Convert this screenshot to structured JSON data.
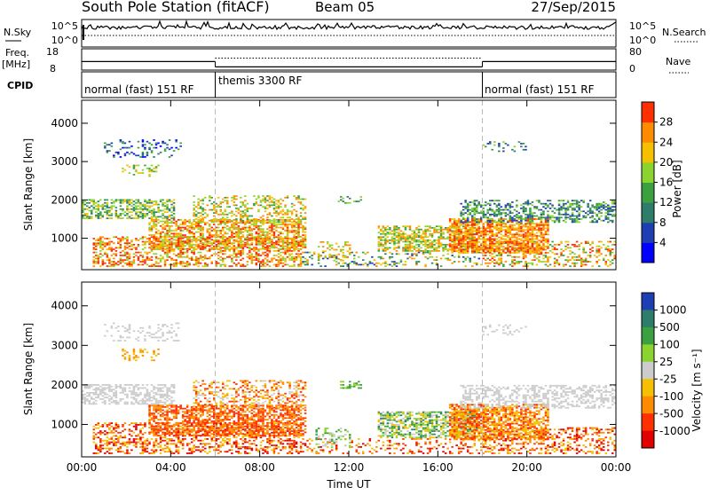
{
  "chart_data": [
    {
      "type": "table",
      "title": "South Pole Station (fitACF)",
      "subtitle": "Beam 05",
      "date": "27/Sep/2015"
    },
    {
      "type": "line",
      "panel": "noise",
      "label_left": "N.Sky",
      "label_right": "N.Search",
      "left_ticks": [
        "10^5",
        "10^0"
      ],
      "right_ticks": [
        "10^5",
        "10^0"
      ]
    },
    {
      "type": "line",
      "panel": "frequency",
      "label_left": "Freq.",
      "label_left_unit": "[MHz]",
      "label_right": "Nave",
      "left_ticks": [
        18,
        8
      ],
      "right_ticks": [
        80,
        0
      ],
      "segments": [
        {
          "start_hour": 0,
          "end_hour": 6,
          "freq": 12.0,
          "nave": 80
        },
        {
          "start_hour": 6,
          "end_hour": 18,
          "freq": 9.5,
          "nave": 45
        },
        {
          "start_hour": 18,
          "end_hour": 24,
          "freq": 12.0,
          "nave": 80
        }
      ]
    },
    {
      "type": "table",
      "panel": "cpid",
      "label": "CPID",
      "segments": [
        {
          "start_hour": 0,
          "end_hour": 6,
          "name": "normal (fast) 151 RF"
        },
        {
          "start_hour": 6,
          "end_hour": 18,
          "name": "themis 3300 RF"
        },
        {
          "start_hour": 18,
          "end_hour": 24,
          "name": "normal (fast) 151 RF"
        }
      ]
    },
    {
      "type": "heatmap",
      "panel": "power",
      "ylabel": "Slant Range [km]",
      "ylim": [
        180,
        4600
      ],
      "yticks": [
        1000,
        2000,
        3000,
        4000
      ],
      "colorbar_label": "Power [dB]",
      "colorbar_ticks": [
        28,
        24,
        20,
        16,
        12,
        8,
        4
      ],
      "colorbar_range": [
        0,
        32
      ],
      "colors": [
        "#0000ff",
        "#1e3fb4",
        "#2e7d6a",
        "#3aa040",
        "#8bd430",
        "#f5c000",
        "#ff8c00",
        "#ff3000"
      ]
    },
    {
      "type": "heatmap",
      "panel": "velocity",
      "xlabel": "Time UT",
      "ylabel": "Slant Range [km]",
      "xlim": [
        0,
        24
      ],
      "xticks": [
        "00:00",
        "04:00",
        "08:00",
        "12:00",
        "16:00",
        "20:00",
        "00:00"
      ],
      "ylim": [
        180,
        4600
      ],
      "yticks": [
        1000,
        2000,
        3000,
        4000
      ],
      "colorbar_label": "Velocity [m s⁻¹]",
      "colorbar_ticks": [
        "1000",
        "500",
        "100",
        "25",
        "-25",
        "-100",
        "-500",
        "-1000"
      ],
      "colors": [
        "#1e3fb4",
        "#2e7d6a",
        "#3aa040",
        "#8bd430",
        "#cccccc",
        "#f5c000",
        "#ff8c00",
        "#ff3000",
        "#e00000"
      ]
    }
  ]
}
